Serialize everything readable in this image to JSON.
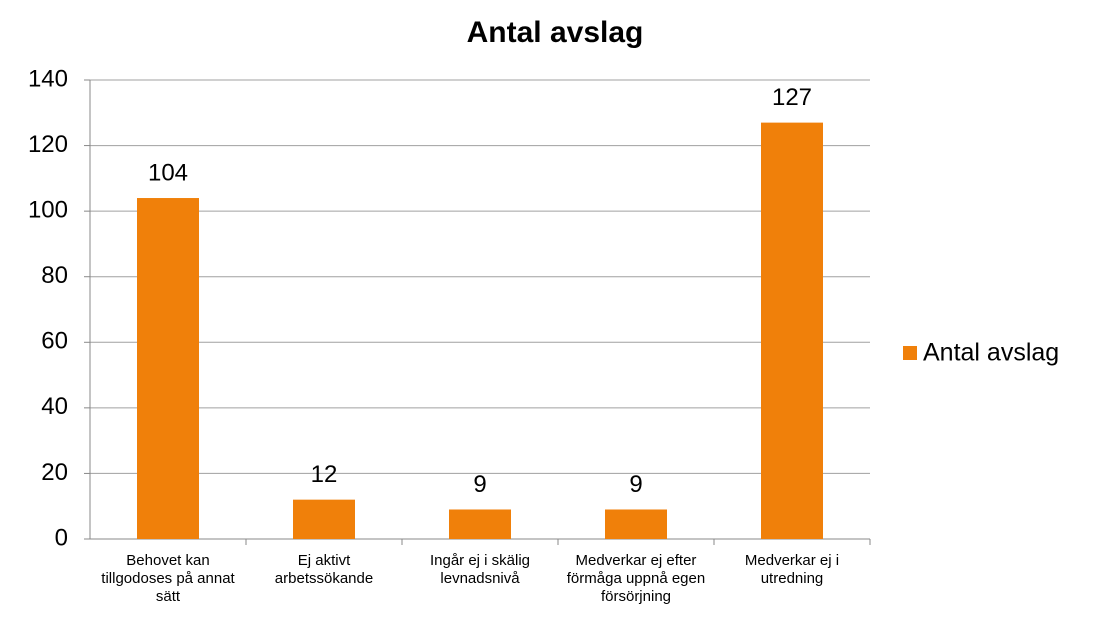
{
  "chart_data": {
    "type": "bar",
    "title": "Antal avslag",
    "categories": [
      "Behovet kan tillgodoses på annat sätt",
      "Ej aktivt arbetssökande",
      "Ingår ej i skälig levnadsnivå",
      "Medverkar ej efter förmåga uppnå egen försörjning",
      "Medverkar ej i utredning"
    ],
    "series": [
      {
        "name": "Antal avslag",
        "color": "#f0800a",
        "values": [
          104,
          12,
          9,
          9,
          127
        ]
      }
    ],
    "ylim": [
      0,
      140
    ],
    "yticks": [
      0,
      20,
      40,
      60,
      80,
      100,
      120,
      140
    ],
    "grid": true,
    "legend": "right"
  }
}
